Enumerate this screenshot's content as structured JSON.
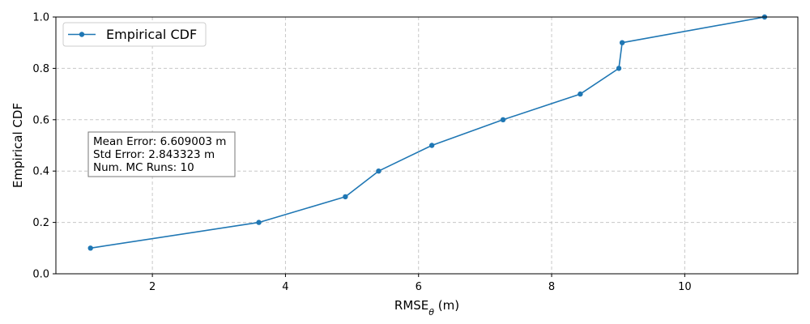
{
  "chart_data": {
    "type": "line",
    "title": "",
    "xlabel": "RMSE",
    "xlabel_sub": "θ",
    "xlabel_unit": " (m)",
    "ylabel": "Empirical CDF",
    "xlim": [
      0.55,
      11.7
    ],
    "ylim": [
      0.0,
      1.0
    ],
    "xticks": [
      2,
      4,
      6,
      8,
      10
    ],
    "yticks": [
      0.0,
      0.2,
      0.4,
      0.6,
      0.8,
      1.0
    ],
    "xtick_labels": [
      "2",
      "4",
      "6",
      "8",
      "10"
    ],
    "ytick_labels": [
      "0.0",
      "0.2",
      "0.4",
      "0.6",
      "0.8",
      "1.0"
    ],
    "grid": true,
    "legend_position": "top-left",
    "series": [
      {
        "name": "Empirical CDF",
        "color": "#1f77b4",
        "x": [
          1.07,
          3.6,
          4.9,
          5.4,
          6.2,
          7.27,
          8.43,
          9.01,
          9.06,
          11.2
        ],
        "y": [
          0.1,
          0.2,
          0.3,
          0.4,
          0.5,
          0.6,
          0.7,
          0.8,
          0.9,
          1.0
        ]
      }
    ],
    "annotation": {
      "lines": [
        "Mean Error: 6.609003 m",
        "Std Error: 2.843323 m",
        "Num. MC Runs: 10"
      ]
    }
  }
}
